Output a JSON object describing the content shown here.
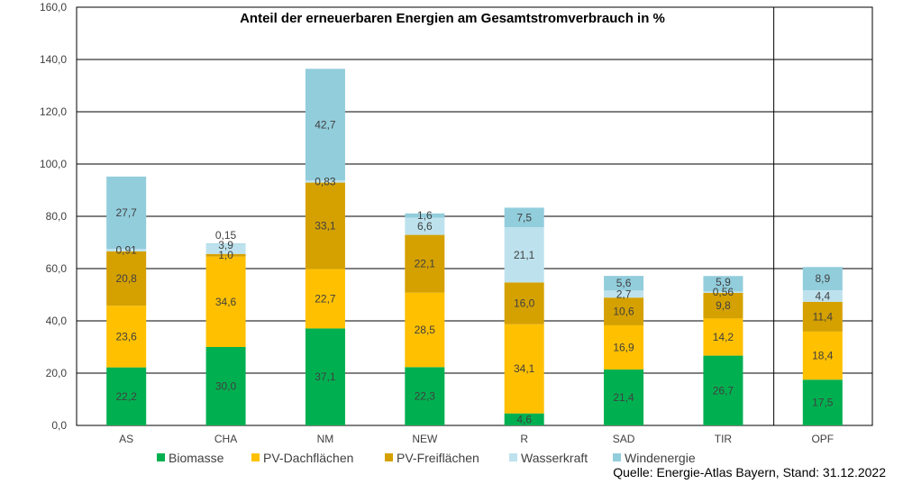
{
  "chart_data": {
    "type": "bar",
    "stacked": true,
    "title": "Anteil der erneuerbaren Energien am Gesamtstromverbrauch in %",
    "categories": [
      "AS",
      "CHA",
      "NM",
      "NEW",
      "R",
      "SAD",
      "TIR",
      "OPF"
    ],
    "ylim": [
      0,
      160
    ],
    "yticks": [
      "0,0",
      "20,0",
      "40,0",
      "60,0",
      "80,0",
      "100,0",
      "120,0",
      "140,0",
      "160,0"
    ],
    "grid": true,
    "legend_position": "bottom",
    "series": [
      {
        "name": "Biomasse",
        "color": "#00b050",
        "values": [
          22.2,
          30.0,
          37.1,
          22.3,
          4.6,
          21.4,
          26.7,
          17.5
        ],
        "labels": [
          "22,2",
          "30,0",
          "37,1",
          "22,3",
          "4,6",
          "21,4",
          "26,7",
          "17,5"
        ]
      },
      {
        "name": "PV-Dachflächen",
        "color": "#ffc000",
        "values": [
          23.6,
          34.6,
          22.7,
          28.5,
          34.1,
          16.9,
          14.2,
          18.4
        ],
        "labels": [
          "23,6",
          "34,6",
          "22,7",
          "28,5",
          "34,1",
          "16,9",
          "14,2",
          "18,4"
        ]
      },
      {
        "name": "PV-Freiflächen",
        "color": "#d5a100",
        "values": [
          20.8,
          1.0,
          33.1,
          22.1,
          16.0,
          10.6,
          9.8,
          11.4
        ],
        "labels": [
          "20,8",
          "1,0",
          "33,1",
          "22,1",
          "16,0",
          "10,6",
          "9,8",
          "11,4"
        ]
      },
      {
        "name": "Wasserkraft",
        "color": "#bde2ee",
        "values": [
          0.91,
          3.9,
          0.83,
          6.6,
          21.1,
          2.7,
          0.56,
          4.4
        ],
        "labels": [
          "0,91",
          "3,9",
          "0,83",
          "6,6",
          "21,1",
          "2,7",
          "0,56",
          "4,4"
        ]
      },
      {
        "name": "Windenergie",
        "color": "#92cddc",
        "values": [
          27.7,
          0.15,
          42.7,
          1.6,
          7.5,
          5.6,
          5.9,
          8.9
        ],
        "labels": [
          "27,7",
          "0,15",
          "42,7",
          "1,6",
          "7,5",
          "5,6",
          "5,9",
          "8,9"
        ]
      }
    ],
    "source": "Quelle: Energie-Atlas Bayern, Stand: 31.12.2022"
  }
}
